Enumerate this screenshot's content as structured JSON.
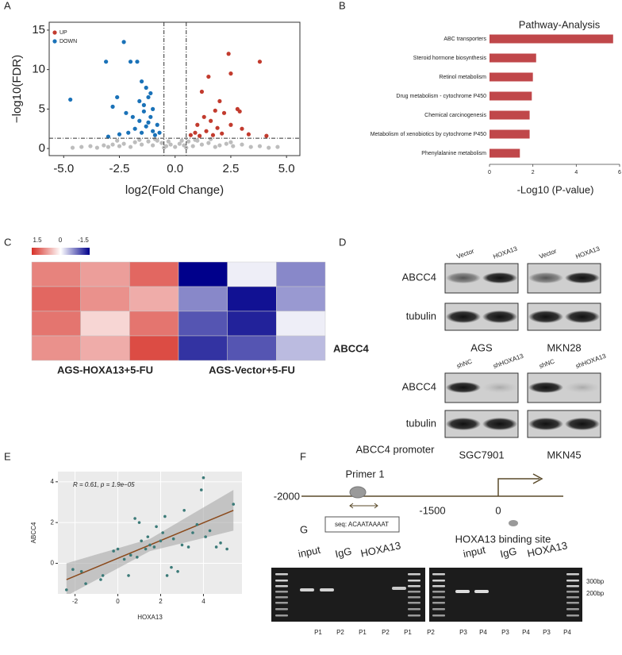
{
  "figure": {
    "panel_labels": [
      "A",
      "B",
      "C",
      "D",
      "E",
      "F",
      "G"
    ]
  },
  "chart_data": [
    {
      "type": "scatter",
      "xlabel": "log2(Fold Change)",
      "ylabel": "−log10(FDR)",
      "xlim": [
        -5.65,
        5.6
      ],
      "ylim": [
        -0.9,
        16
      ],
      "xticks": [
        {
          "value": -5,
          "label": "-5.0"
        },
        {
          "value": -2.5,
          "label": "-2.5"
        },
        {
          "value": 0,
          "label": "0.0"
        },
        {
          "value": 2.5,
          "label": "2.5"
        },
        {
          "value": 5,
          "label": "5.0"
        }
      ],
      "yticks": [
        0,
        5,
        10,
        15
      ],
      "thresholds": {
        "x": [
          -0.5,
          0.5
        ],
        "y": 1.3
      },
      "series": [
        {
          "color": "#bdbdbd",
          "x": [
            -4.6,
            -4.2,
            -3.8,
            -3.5,
            -3.2,
            -3.0,
            -2.8,
            -2.5,
            -2.3,
            -2.0,
            -1.8,
            -1.5,
            -1.2,
            -1.0,
            -0.8,
            -0.6,
            -0.4,
            -0.2,
            0.0,
            0.2,
            0.4,
            0.6,
            0.8,
            1.0,
            1.2,
            1.5,
            1.8,
            2.0,
            2.3,
            2.6,
            3.0,
            3.4,
            3.8,
            4.2,
            4.6,
            -1.6,
            -0.9,
            -0.3,
            0.3,
            0.9,
            1.6,
            2.5,
            -2.6,
            -0.5,
            0.5
          ],
          "values": [
            0.1,
            0.2,
            0.3,
            0.1,
            0.4,
            0.2,
            0.5,
            0.3,
            0.6,
            0.2,
            0.8,
            0.5,
            0.9,
            0.4,
            1.0,
            0.7,
            0.3,
            0.5,
            0.2,
            0.6,
            0.4,
            0.9,
            0.3,
            1.0,
            0.5,
            0.7,
            0.2,
            0.4,
            0.6,
            0.3,
            0.5,
            0.2,
            0.3,
            0.1,
            0.2,
            1.1,
            1.2,
            0.9,
            1.0,
            1.1,
            1.2,
            0.8,
            1.0,
            0.1,
            0.1
          ]
        },
        {
          "name": "UP",
          "color": "#c23b2e",
          "x": [
            3.8,
            2.4,
            2.5,
            1.5,
            1.2,
            2.0,
            2.8,
            1.8,
            1.3,
            2.2,
            1.0,
            1.6,
            2.5,
            3.0,
            0.9,
            1.9,
            2.9,
            1.4,
            0.7,
            3.3,
            4.1,
            2.1,
            1.7,
            1.1
          ],
          "values": [
            11.0,
            12.0,
            9.5,
            9.1,
            7.2,
            6.0,
            5.0,
            4.8,
            4.0,
            4.5,
            3.0,
            3.5,
            3.0,
            2.5,
            2.0,
            2.6,
            4.7,
            2.2,
            1.7,
            1.8,
            1.6,
            1.9,
            1.7,
            1.6
          ]
        },
        {
          "name": "DOWN",
          "color": "#1a72b8",
          "x": [
            -4.7,
            -3.1,
            -2.3,
            -2.0,
            -1.7,
            -2.6,
            -2.8,
            -2.2,
            -1.5,
            -1.3,
            -1.2,
            -1.0,
            -1.4,
            -1.1,
            -1.6,
            -1.8,
            -1.3,
            -0.8,
            -1.0,
            -2.1,
            -2.5,
            -0.7,
            -1.5,
            -1.9,
            -1.2,
            -0.9,
            -3.0,
            -1.6,
            -1.1,
            -1.4
          ],
          "values": [
            6.2,
            11.0,
            13.5,
            11.0,
            11.0,
            6.5,
            5.3,
            4.5,
            8.5,
            7.7,
            6.5,
            5.0,
            5.5,
            4.0,
            3.5,
            2.5,
            2.8,
            3.0,
            2.2,
            2.0,
            1.8,
            2.0,
            2.0,
            4.0,
            3.3,
            1.7,
            1.5,
            6.0,
            7.0,
            4.7
          ]
        }
      ]
    },
    {
      "type": "hbar",
      "title": "Pathway-Analysis",
      "xlabel": "-Log10 (P-value)",
      "categories": [
        "ABC transporters",
        "Steroid hormone biosynthesis",
        "Retinol metabolism",
        "Drug metabolism - cytochrome P450",
        "Chemical carcinogenesis",
        "Metabolism of xenobiotics by cytochrome P450",
        "Phenylalanine metabolism"
      ],
      "values": [
        5.7,
        2.15,
        2.0,
        1.95,
        1.85,
        1.85,
        1.4
      ],
      "color": "#c0474a",
      "xlim": [
        0,
        6
      ],
      "xticks": [
        0,
        2,
        4,
        6
      ]
    },
    {
      "type": "heatmap",
      "column_groups": [
        "AGS-HOXA13+5-FU",
        "AGS-Vector+5-FU"
      ],
      "row_label": "ABCC4",
      "values": [
        [
          0.9,
          0.7,
          1.1,
          -1.5,
          -0.1,
          -0.7
        ],
        [
          1.1,
          0.8,
          0.6,
          -0.7,
          -1.4,
          -0.6
        ],
        [
          1.0,
          0.3,
          1.0,
          -1.0,
          -1.3,
          -0.1
        ],
        [
          0.8,
          0.6,
          1.3,
          -1.2,
          -1.0,
          -0.4
        ]
      ],
      "scale": {
        "ticks": [
          1.5,
          0,
          -1.5
        ],
        "colors": [
          "#d73027",
          "#ffffff",
          "#00008b"
        ]
      }
    },
    {
      "type": "scatter",
      "xlabel": "HOXA13",
      "ylabel": "ABCC4",
      "annotation": "R = 0.61, p = 1.9e−05",
      "xlim": [
        -2.8,
        5.8
      ],
      "ylim": [
        -1.5,
        4.5
      ],
      "xticks": [
        -2,
        0,
        2,
        4
      ],
      "yticks": [
        0,
        2,
        4
      ],
      "grid": true,
      "color": "#3b7a78",
      "x": [
        -2.4,
        -2.1,
        -1.7,
        -1.5,
        -0.8,
        -0.7,
        -0.2,
        0.0,
        0.3,
        0.5,
        0.6,
        0.8,
        0.9,
        1.0,
        1.1,
        1.3,
        1.4,
        1.5,
        1.7,
        1.8,
        2.0,
        2.1,
        2.2,
        2.3,
        2.5,
        2.6,
        2.8,
        3.0,
        3.1,
        3.3,
        3.5,
        3.7,
        3.9,
        4.0,
        4.1,
        4.3,
        4.6,
        4.8,
        5.1,
        5.4
      ],
      "values": [
        -1.3,
        -0.3,
        -0.4,
        -1.0,
        -0.8,
        -0.6,
        0.6,
        0.7,
        0.2,
        -0.6,
        0.4,
        2.2,
        0.3,
        2.0,
        1.1,
        0.7,
        1.3,
        0.9,
        0.8,
        1.8,
        1.1,
        1.5,
        2.3,
        -0.6,
        -0.2,
        1.2,
        -0.4,
        0.9,
        2.6,
        0.8,
        1.5,
        1.9,
        3.6,
        4.2,
        1.3,
        1.6,
        0.8,
        1.0,
        0.7,
        2.9
      ],
      "fit": {
        "x": [
          -2.4,
          5.4
        ],
        "y": [
          -0.8,
          2.6
        ],
        "color": "#8b4a1c"
      },
      "ci_band": {
        "x": [
          -2.4,
          1.5,
          5.4
        ],
        "lower": [
          -1.6,
          0.6,
          1.6
        ],
        "upper": [
          0.0,
          1.2,
          3.6
        ],
        "color": "#a8a8a8"
      }
    }
  ],
  "blot": {
    "top_left_lanes": [
      "Vector",
      "HOXA13"
    ],
    "top_right_lanes": [
      "Vector",
      "HOXA13"
    ],
    "bottom_left_lanes": [
      "shNC",
      "shHOXA13"
    ],
    "bottom_right_lanes": [
      "shNC",
      "shHOXA13"
    ],
    "proteins_top": [
      "ABCC4",
      "tubulin"
    ],
    "proteins_bottom": [
      "ABCC4",
      "tubulin"
    ],
    "cell_lines": [
      "AGS",
      "MKN28",
      "SGC7901",
      "MKN45"
    ]
  },
  "promoter": {
    "title": "ABCC4 promoter",
    "primer": "Primer 1",
    "positions": [
      "-2000",
      "-1500",
      "0"
    ],
    "sequence": "seq: ACAATAAAAT",
    "binding_site": "HOXA13 binding site"
  },
  "gel": {
    "groups_left": [
      "input",
      "IgG",
      "HOXA13"
    ],
    "groups_right": [
      "input",
      "IgG",
      "HOXA13"
    ],
    "markers": [
      "300bp",
      "200bp"
    ],
    "lanes": [
      "P1",
      "P2",
      "P1",
      "P2",
      "P1",
      "P2",
      "P3",
      "P4",
      "P3",
      "P4",
      "P3",
      "P4"
    ]
  }
}
